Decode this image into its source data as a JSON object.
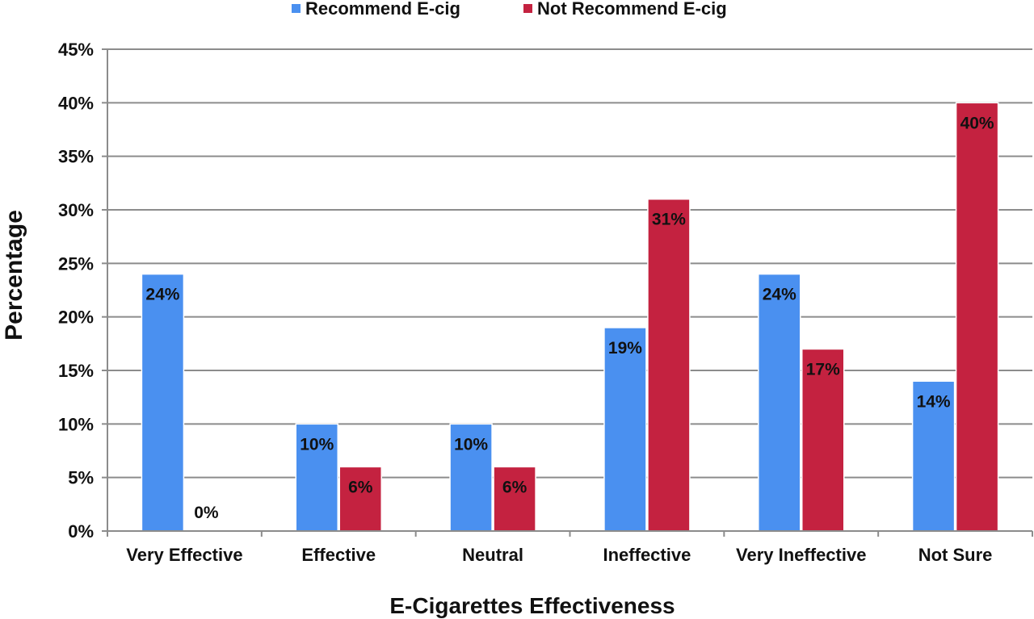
{
  "chart_data": {
    "type": "bar",
    "title": "",
    "xlabel": "E-Cigarettes Effectiveness",
    "ylabel": "Percentage",
    "categories": [
      "Very Effective",
      "Effective",
      "Neutral",
      "Ineffective",
      "Very Ineffective",
      "Not Sure"
    ],
    "series": [
      {
        "name": "Recommend E-cig",
        "color": "#4a90f0",
        "values": [
          24,
          10,
          10,
          19,
          24,
          14
        ],
        "labels": [
          "24%",
          "10%",
          "10%",
          "19%",
          "24%",
          "14%"
        ]
      },
      {
        "name": "Not Recommend E-cig",
        "color": "#c42240",
        "values": [
          0,
          6,
          6,
          31,
          17,
          40
        ],
        "labels": [
          "0%",
          "6%",
          "6%",
          "31%",
          "17%",
          "40%"
        ]
      }
    ],
    "ylim": [
      0,
      45
    ],
    "yticks": [
      0,
      5,
      10,
      15,
      20,
      25,
      30,
      35,
      40,
      45
    ],
    "ytick_labels": [
      "0%",
      "5%",
      "10%",
      "15%",
      "20%",
      "25%",
      "30%",
      "35%",
      "40%",
      "45%"
    ],
    "grid": true,
    "legend_position": "top-center"
  }
}
